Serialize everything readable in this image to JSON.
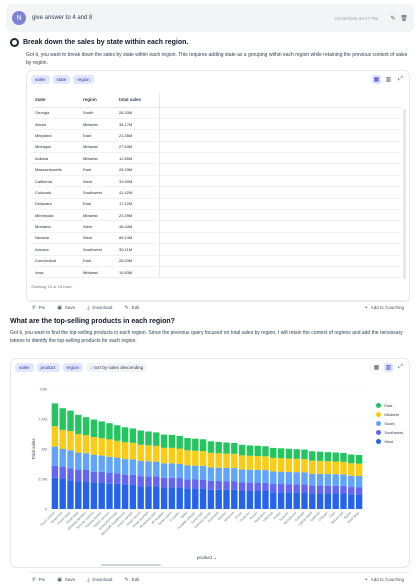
{
  "query": {
    "avatar": "N",
    "text": "give answer to 4 and 8",
    "timestamp": "01/30/2025 09:47 PM"
  },
  "section1": {
    "heading": "Break down the sales by state within each region.",
    "text": "Got it, you want to break down the sales by state within each region. This requires adding state as a grouping within each region while retaining the previous context of sales by region.",
    "chips": [
      "sales",
      "state",
      "region"
    ],
    "columns": [
      "state",
      "region",
      "total sales"
    ],
    "rows": [
      [
        "Georgia",
        "South",
        "28.33M"
      ],
      [
        "Illinois",
        "Midwest",
        "34.17M"
      ],
      [
        "Maryland",
        "East",
        "21.35M"
      ],
      [
        "Michigan",
        "Midwest",
        "27.63M"
      ],
      [
        "Indiana",
        "Midwest",
        "12.85M"
      ],
      [
        "Massachusetts",
        "East",
        "28.23M"
      ],
      [
        "California",
        "West",
        "33.90M"
      ],
      [
        "Colorado",
        "Southwest",
        "41.42M"
      ],
      [
        "Delaware",
        "East",
        "17.12M"
      ],
      [
        "Minnesota",
        "Midwest",
        "23.49M"
      ],
      [
        "Montana",
        "West",
        "48.44M"
      ],
      [
        "Nevada",
        "West",
        "66.14M"
      ],
      [
        "Arizona",
        "Southwest",
        "30.11M"
      ],
      [
        "Connecticut",
        "East",
        "28.03M"
      ],
      [
        "Iowa",
        "Midwest",
        "19.83M"
      ]
    ],
    "rowcount": "Showing 15 of 15 rows",
    "actions": {
      "pin": "Pin",
      "save": "Save",
      "download": "Download",
      "edit": "Edit",
      "coaching": "Add to Coaching"
    }
  },
  "section2": {
    "heading": "What are the top-selling products in each region?",
    "text": "Got it, you want to find the top-selling products in each region. Since the previous query focused on total sales by region, I will retain the context of regions and add the necessary tokens to identify the top-selling products for each region.",
    "chips": [
      "sales",
      "product",
      "region",
      "sort by sales descending"
    ],
    "actions": {
      "pin": "Pin",
      "save": "Save",
      "download": "Download",
      "edit": "Edit",
      "coaching": "Add to Coaching"
    }
  },
  "colors": {
    "East": "#22c55e",
    "Midwest": "#facc15",
    "South": "#60a5fa",
    "Southwest": "#6366f1",
    "West": "#2563eb"
  },
  "chart_data": {
    "type": "bar",
    "stacked": true,
    "title": "",
    "xlabel": "product",
    "ylabel": "Total sales",
    "ylim": [
      0,
      10000000
    ],
    "yticks": [
      "0",
      "2.5M",
      "5M",
      "7.5M",
      "10M"
    ],
    "legend_position": "right",
    "categories": [
      "Touch screen",
      "Smart lock",
      "Power bank",
      "Smart plug",
      "Wireless speaker",
      "Security camera",
      "Fitness tracker",
      "Robot vacuum",
      "Smart thermostat",
      "Bluetooth headphones",
      "Action camera",
      "Noise cancel",
      "Smart doorbell",
      "Streaming stick",
      "VR headset",
      "Smart watch",
      "E-reader",
      "Tablet",
      "Portable charger",
      "Smart light",
      "Gaming mouse",
      "Keyboard",
      "Monitor",
      "Webcam",
      "Drone",
      "Projector",
      "Router",
      "Hard drive",
      "USB hub",
      "Printer",
      "Scanner",
      "Microphone",
      "Earbuds",
      "Laptop stand",
      "Cable kit",
      "Charger",
      "Case",
      "Mouse pad",
      "Stylus",
      "Desk lamp"
    ],
    "series": [
      {
        "name": "West",
        "values": [
          2.6,
          2.5,
          2.4,
          2.3,
          2.3,
          2.2,
          2.2,
          2.1,
          2.1,
          2.0,
          2.0,
          1.9,
          1.9,
          1.9,
          1.8,
          1.8,
          1.8,
          1.7,
          1.7,
          1.7,
          1.6,
          1.6,
          1.6,
          1.6,
          1.5,
          1.5,
          1.5,
          1.5,
          1.4,
          1.4,
          1.4,
          1.4,
          1.4,
          1.3,
          1.3,
          1.3,
          1.3,
          1.3,
          1.2,
          1.2
        ]
      },
      {
        "name": "Southwest",
        "values": [
          1.0,
          1.0,
          1.0,
          0.95,
          0.95,
          0.9,
          0.9,
          0.9,
          0.88,
          0.86,
          0.85,
          0.84,
          0.83,
          0.82,
          0.8,
          0.8,
          0.78,
          0.77,
          0.76,
          0.75,
          0.74,
          0.73,
          0.72,
          0.72,
          0.71,
          0.7,
          0.7,
          0.69,
          0.68,
          0.68,
          0.67,
          0.66,
          0.66,
          0.65,
          0.65,
          0.64,
          0.64,
          0.63,
          0.63,
          0.62
        ]
      },
      {
        "name": "South",
        "values": [
          1.6,
          1.5,
          1.5,
          1.45,
          1.4,
          1.4,
          1.35,
          1.35,
          1.3,
          1.3,
          1.28,
          1.26,
          1.24,
          1.22,
          1.2,
          1.2,
          1.18,
          1.16,
          1.15,
          1.14,
          1.12,
          1.11,
          1.1,
          1.09,
          1.08,
          1.07,
          1.06,
          1.05,
          1.04,
          1.03,
          1.02,
          1.01,
          1.0,
          0.99,
          0.98,
          0.97,
          0.96,
          0.95,
          0.94,
          0.93
        ]
      },
      {
        "name": "Midwest",
        "values": [
          1.7,
          1.6,
          1.6,
          1.55,
          1.5,
          1.5,
          1.45,
          1.45,
          1.4,
          1.4,
          1.38,
          1.36,
          1.34,
          1.32,
          1.3,
          1.3,
          1.28,
          1.26,
          1.25,
          1.24,
          1.22,
          1.21,
          1.2,
          1.19,
          1.18,
          1.17,
          1.16,
          1.15,
          1.14,
          1.13,
          1.12,
          1.11,
          1.1,
          1.09,
          1.08,
          1.07,
          1.06,
          1.05,
          1.04,
          1.03
        ]
      },
      {
        "name": "East",
        "values": [
          1.9,
          1.8,
          1.7,
          1.6,
          1.5,
          1.45,
          1.4,
          1.35,
          1.3,
          1.25,
          1.2,
          1.18,
          1.15,
          1.12,
          1.1,
          1.08,
          1.05,
          1.02,
          1.0,
          0.98,
          0.96,
          0.94,
          0.92,
          0.9,
          0.88,
          0.86,
          0.85,
          0.84,
          0.83,
          0.82,
          0.81,
          0.8,
          0.79,
          0.78,
          0.77,
          0.76,
          0.75,
          0.74,
          0.73,
          0.72
        ]
      }
    ]
  }
}
